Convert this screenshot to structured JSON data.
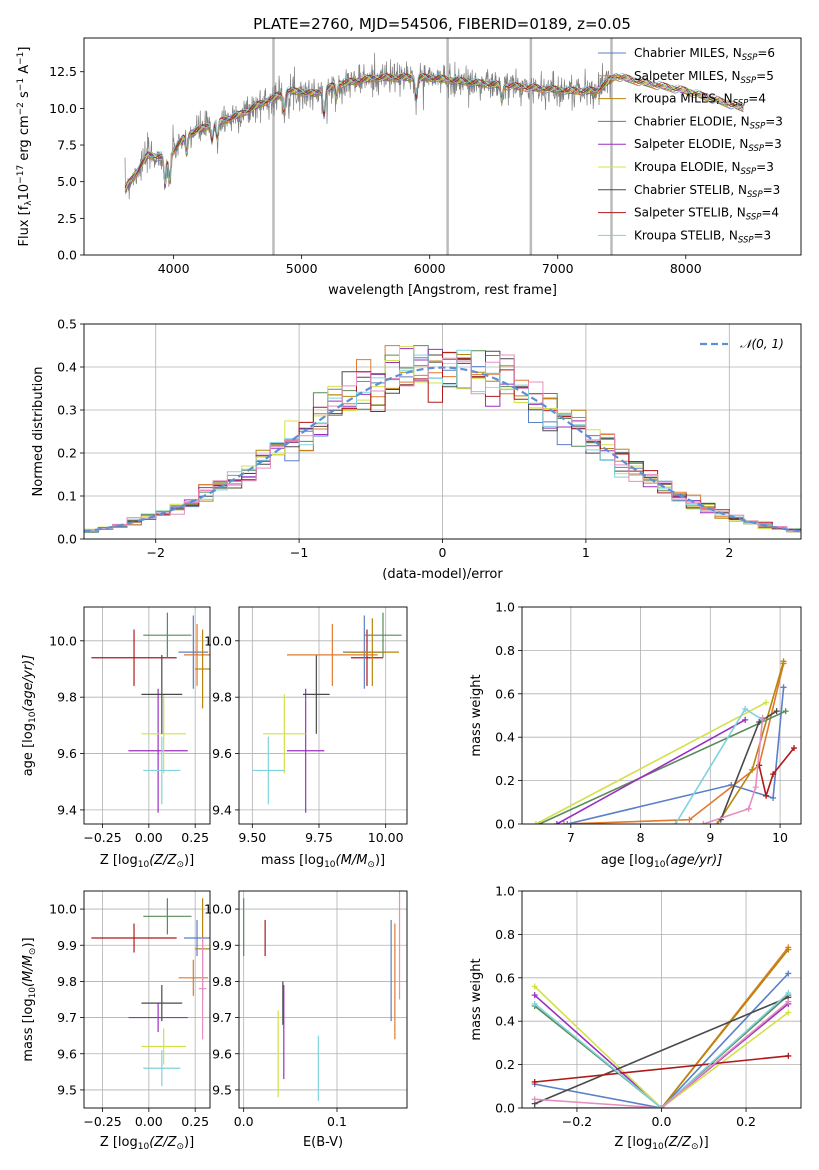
{
  "figure": {
    "title": "PLATE=2760, MJD=54506, FIBERID=0189, z=0.05"
  },
  "legend_spectrum": [
    {
      "label": "Chabrier MILES, N",
      "sub": "SSP",
      "suffix": "=6",
      "color": "#5b7fc9"
    },
    {
      "label": "Salpeter MILES, N",
      "sub": "SSP",
      "suffix": "=5",
      "color": "#e07a2e"
    },
    {
      "label": "Kroupa MILES, N",
      "sub": "SSP",
      "suffix": "=4",
      "color": "#b8860b"
    },
    {
      "label": "Chabrier ELODIE, N",
      "sub": "SSP",
      "suffix": "=3",
      "color": "#5a8a5a"
    },
    {
      "label": "Salpeter ELODIE, N",
      "sub": "SSP",
      "suffix": "=3",
      "color": "#9b30c0"
    },
    {
      "label": "Kroupa ELODIE, N",
      "sub": "SSP",
      "suffix": "=3",
      "color": "#d4e04a"
    },
    {
      "label": "Chabrier STELIB, N",
      "sub": "SSP",
      "suffix": "=3",
      "color": "#4a4a4a"
    },
    {
      "label": "Salpeter STELIB, N",
      "sub": "SSP",
      "suffix": "=4",
      "color": "#b01818"
    },
    {
      "label": "Kroupa STELIB, N",
      "sub": "SSP",
      "suffix": "=3",
      "color": "#7fd3dc"
    }
  ],
  "legend_residual": {
    "label": "𝒩(0, 1)",
    "color": "#5b8fd6"
  },
  "colors": {
    "data": "#7f7f7f",
    "mask": "#bbbbbb",
    "grid": "#b0b0b0",
    "pink": "#e58fc0"
  },
  "chart_data": [
    {
      "id": "spectrum",
      "type": "line",
      "xlabel": "wavelength [Angstrom, rest frame]",
      "ylabel": "Flux [f",
      "ylabel_sub": "λ",
      "ylabel_mid": "10",
      "ylabel_sup1": "−17",
      "ylabel_end": " erg cm",
      "ylabel_sup2": "−2",
      "ylabel_end2": " s",
      "ylabel_sup3": "−1",
      "ylabel_end3": " A",
      "ylabel_sup4": "−1",
      "ylabel_close": "]",
      "xlim": [
        3300,
        8900
      ],
      "ylim": [
        0,
        14.8
      ],
      "xticks": [
        4000,
        5000,
        6000,
        7000,
        8000
      ],
      "yticks": [
        "0.0",
        "2.5",
        "5.0",
        "7.5",
        "10.0",
        "12.5"
      ],
      "ytick_values": [
        0,
        2.5,
        5,
        7.5,
        10,
        12.5
      ],
      "continuum_knots": [
        [
          3620,
          4.5
        ],
        [
          3800,
          6.8
        ],
        [
          3950,
          6.6
        ],
        [
          4100,
          8.2
        ],
        [
          4300,
          8.9
        ],
        [
          4500,
          9.5
        ],
        [
          4700,
          10.4
        ],
        [
          4900,
          11.2
        ],
        [
          5100,
          11.0
        ],
        [
          5300,
          11.7
        ],
        [
          5600,
          12.1
        ],
        [
          6000,
          12.1
        ],
        [
          6400,
          11.7
        ],
        [
          6800,
          11.4
        ],
        [
          7100,
          11.2
        ],
        [
          7300,
          11.2
        ],
        [
          7450,
          12.2
        ],
        [
          7700,
          11.7
        ],
        [
          8000,
          11.2
        ],
        [
          8300,
          10.4
        ],
        [
          8450,
          10.0
        ]
      ],
      "data_range": [
        3620,
        7420
      ],
      "model_range": [
        3620,
        8450
      ],
      "absorption_lines": [
        [
          3934,
          2.2
        ],
        [
          3969,
          2.0
        ],
        [
          4102,
          1.5
        ],
        [
          4300,
          1.2
        ],
        [
          4340,
          1.3
        ],
        [
          4861,
          1.4
        ],
        [
          5175,
          2.0
        ],
        [
          5270,
          1.0
        ],
        [
          5895,
          1.6
        ],
        [
          6563,
          1.2
        ]
      ],
      "masks": [
        4780,
        6140,
        6790,
        7420
      ]
    },
    {
      "id": "residuals",
      "type": "histogram",
      "xlabel": "(data-model)/error",
      "ylabel": "Normed distribution",
      "xlim": [
        -2.5,
        2.5
      ],
      "ylim": [
        0,
        0.5
      ],
      "xticks": [
        "−2",
        "−1",
        "0",
        "1",
        "2"
      ],
      "xtick_values": [
        -2,
        -1,
        0,
        1,
        2
      ],
      "yticks": [
        "0.0",
        "0.1",
        "0.2",
        "0.3",
        "0.4",
        "0.5"
      ],
      "ytick_values": [
        0,
        0.1,
        0.2,
        0.3,
        0.4,
        0.5
      ],
      "bin_width": 0.1
    },
    {
      "id": "age-vs-Z",
      "type": "errorbar",
      "xlabel": "Z [log",
      "xlabel_sub": "10",
      "xlabel_rest": "(Z/Z",
      "xlabel_sub2": "⊙",
      "xlabel_end": ")]",
      "ylabel": "age  [log",
      "ylabel_sub": "10",
      "ylabel_rest": "(age/yr)]",
      "xlim": [
        -0.35,
        0.33
      ],
      "ylim": [
        9.35,
        10.12
      ],
      "xticks": [
        "−0.25",
        "0.00",
        "0.25"
      ],
      "xtick_values": [
        -0.25,
        0,
        0.25
      ],
      "yticks": [
        "9.4",
        "9.6",
        "9.8",
        "10.0"
      ],
      "ytick_values": [
        9.4,
        9.6,
        9.8,
        10.0
      ],
      "points": [
        {
          "x": -0.08,
          "xerr": 0.23,
          "y": 9.94,
          "yerr": 0.1,
          "series": 7
        },
        {
          "x": 0.1,
          "xerr": 0.13,
          "y": 10.02,
          "yerr": 0.08,
          "series": 3
        },
        {
          "x": 0.05,
          "xerr": 0.16,
          "y": 9.61,
          "yerr": 0.22,
          "series": 4
        },
        {
          "x": 0.08,
          "xerr": 0.12,
          "y": 9.67,
          "yerr": 0.14,
          "series": 5
        },
        {
          "x": 0.07,
          "xerr": 0.11,
          "y": 9.81,
          "yerr": 0.14,
          "series": 6
        },
        {
          "x": 0.07,
          "xerr": 0.1,
          "y": 9.54,
          "yerr": 0.12,
          "series": 8
        },
        {
          "x": 0.24,
          "xerr": 0.08,
          "y": 9.96,
          "yerr": 0.13,
          "series": 0
        },
        {
          "x": 0.26,
          "xerr": 0.07,
          "y": 9.95,
          "yerr": 0.11,
          "series": 1
        },
        {
          "x": 0.29,
          "xerr": 0.04,
          "y": 9.9,
          "yerr": 0.14,
          "series": 2
        }
      ]
    },
    {
      "id": "age-vs-mass",
      "type": "errorbar",
      "xlabel": "mass [log",
      "xlabel_sub": "10",
      "xlabel_rest": "(M/M",
      "xlabel_sub2": "⊙",
      "xlabel_end": ")]",
      "ylabel": "",
      "xlim": [
        9.45,
        10.08
      ],
      "ylim": [
        9.35,
        10.12
      ],
      "xticks": [
        "9.50",
        "9.75",
        "10.00"
      ],
      "xtick_values": [
        9.5,
        9.75,
        10.0
      ],
      "yticks": [
        "9.4",
        "9.6",
        "9.8",
        "10.0"
      ],
      "ytick_values": [
        9.4,
        9.6,
        9.8,
        10.0
      ],
      "points": [
        {
          "x": 9.93,
          "xerr": 0.06,
          "y": 9.94,
          "yerr": 0.1,
          "series": 7
        },
        {
          "x": 9.99,
          "xerr": 0.07,
          "y": 10.02,
          "yerr": 0.08,
          "series": 3
        },
        {
          "x": 9.7,
          "xerr": 0.07,
          "y": 9.61,
          "yerr": 0.22,
          "series": 4
        },
        {
          "x": 9.62,
          "xerr": 0.08,
          "y": 9.67,
          "yerr": 0.14,
          "series": 5
        },
        {
          "x": 9.74,
          "xerr": 0.05,
          "y": 9.81,
          "yerr": 0.14,
          "series": 6
        },
        {
          "x": 9.56,
          "xerr": 0.06,
          "y": 9.54,
          "yerr": 0.12,
          "series": 8
        },
        {
          "x": 9.92,
          "xerr": 0.08,
          "y": 9.96,
          "yerr": 0.13,
          "series": 0
        },
        {
          "x": 9.8,
          "xerr": 0.17,
          "y": 9.95,
          "yerr": 0.11,
          "series": 1
        },
        {
          "x": 9.95,
          "xerr": 0.1,
          "y": 9.96,
          "yerr": 0.12,
          "series": 2
        }
      ]
    },
    {
      "id": "weight-vs-age",
      "type": "line",
      "xlabel": "age  [log",
      "xlabel_sub": "10",
      "xlabel_rest": "(age/yr)]",
      "ylabel": "mass weight",
      "xlim": [
        6.3,
        10.3
      ],
      "ylim": [
        0,
        1.0
      ],
      "xticks": [
        "7",
        "8",
        "9",
        "10"
      ],
      "xtick_values": [
        7,
        8,
        9,
        10
      ],
      "yticks": [
        "0.0",
        "0.2",
        "0.4",
        "0.6",
        "0.8",
        "1.0"
      ],
      "ytick_values": [
        0,
        0.2,
        0.4,
        0.6,
        0.8,
        1.0
      ],
      "series": [
        {
          "series": 0,
          "points": [
            [
              6.95,
              0.0
            ],
            [
              9.3,
              0.18
            ],
            [
              9.9,
              0.12
            ],
            [
              10.05,
              0.63
            ]
          ]
        },
        {
          "series": 1,
          "points": [
            [
              6.9,
              0.0
            ],
            [
              8.7,
              0.02
            ],
            [
              9.7,
              0.27
            ],
            [
              10.05,
              0.74
            ]
          ]
        },
        {
          "series": 2,
          "points": [
            [
              9.1,
              0.0
            ],
            [
              9.6,
              0.25
            ],
            [
              10.05,
              0.75
            ]
          ]
        },
        {
          "series": 3,
          "points": [
            [
              6.55,
              0.0
            ],
            [
              10.08,
              0.52
            ]
          ]
        },
        {
          "series": 4,
          "points": [
            [
              6.8,
              0.0
            ],
            [
              9.5,
              0.48
            ]
          ]
        },
        {
          "series": 5,
          "points": [
            [
              6.5,
              0.0
            ],
            [
              9.8,
              0.56
            ]
          ]
        },
        {
          "series": 6,
          "points": [
            [
              9.15,
              0.02
            ],
            [
              9.7,
              0.47
            ],
            [
              9.95,
              0.52
            ]
          ]
        },
        {
          "series": 7,
          "points": [
            [
              9.7,
              0.27
            ],
            [
              9.8,
              0.13
            ],
            [
              9.9,
              0.23
            ],
            [
              10.2,
              0.35
            ]
          ]
        },
        {
          "series": 8,
          "points": [
            [
              8.5,
              0.0
            ],
            [
              9.5,
              0.53
            ],
            [
              9.75,
              0.48
            ]
          ]
        },
        {
          "series": 9,
          "points": [
            [
              8.9,
              0.0
            ],
            [
              9.55,
              0.07
            ],
            [
              9.65,
              0.17
            ],
            [
              9.75,
              0.49
            ]
          ]
        }
      ]
    },
    {
      "id": "mass-vs-Z",
      "type": "errorbar",
      "xlabel": "Z [log",
      "xlabel_sub": "10",
      "xlabel_rest": "(Z/Z",
      "xlabel_sub2": "⊙",
      "xlabel_end": ")]",
      "ylabel": "mass [log",
      "ylabel_sub": "10",
      "ylabel_rest": "(M/M",
      "ylabel_sub2": "⊙",
      "ylabel_end": ")]",
      "xlim": [
        -0.35,
        0.33
      ],
      "ylim": [
        9.45,
        10.05
      ],
      "xticks": [
        "−0.25",
        "0.00",
        "0.25"
      ],
      "xtick_values": [
        -0.25,
        0,
        0.25
      ],
      "yticks": [
        "9.5",
        "9.6",
        "9.7",
        "9.8",
        "9.9",
        "10.0"
      ],
      "ytick_values": [
        9.5,
        9.6,
        9.7,
        9.8,
        9.9,
        10.0
      ],
      "points": [
        {
          "x": -0.08,
          "xerr": 0.23,
          "y": 9.92,
          "yerr": 0.04,
          "series": 7
        },
        {
          "x": 0.1,
          "xerr": 0.13,
          "y": 9.98,
          "yerr": 0.05,
          "series": 3
        },
        {
          "x": 0.05,
          "xerr": 0.16,
          "y": 9.7,
          "yerr": 0.04,
          "series": 4
        },
        {
          "x": 0.08,
          "xerr": 0.12,
          "y": 9.62,
          "yerr": 0.05,
          "series": 5
        },
        {
          "x": 0.07,
          "xerr": 0.11,
          "y": 9.74,
          "yerr": 0.05,
          "series": 6
        },
        {
          "x": 0.07,
          "xerr": 0.1,
          "y": 9.56,
          "yerr": 0.05,
          "series": 8
        },
        {
          "x": 0.24,
          "xerr": 0.08,
          "y": 9.81,
          "yerr": 0.05,
          "series": 1
        },
        {
          "x": 0.26,
          "xerr": 0.07,
          "y": 9.92,
          "yerr": 0.05,
          "series": 0
        },
        {
          "x": 0.29,
          "xerr": 0.04,
          "y": 9.89,
          "yerr": 0.14,
          "series": 2
        },
        {
          "x": 0.29,
          "xerr": 0.02,
          "y": 9.78,
          "yerr": 0.14,
          "series": 9
        }
      ]
    },
    {
      "id": "mass-vs-EBV",
      "type": "errorbar",
      "xlabel": "E(B-V)",
      "ylabel": "",
      "xlim": [
        -0.005,
        0.175
      ],
      "ylim": [
        9.45,
        10.05
      ],
      "xticks": [
        "0.0",
        "0.1"
      ],
      "xtick_values": [
        0,
        0.1
      ],
      "yticks": [
        "9.5",
        "9.6",
        "9.7",
        "9.8",
        "9.9",
        "10.0"
      ],
      "ytick_values": [
        9.5,
        9.6,
        9.7,
        9.8,
        9.9,
        10.0
      ],
      "points": [
        {
          "x": 0.0,
          "xerr": 0.0,
          "y": 9.95,
          "yerr": 0.08,
          "series": 3
        },
        {
          "x": 0.023,
          "xerr": 0.0,
          "y": 9.92,
          "yerr": 0.05,
          "series": 7
        },
        {
          "x": 0.037,
          "xerr": 0.0,
          "y": 9.6,
          "yerr": 0.12,
          "series": 5
        },
        {
          "x": 0.043,
          "xerr": 0.0,
          "y": 9.66,
          "yerr": 0.13,
          "series": 4
        },
        {
          "x": 0.042,
          "xerr": 0.0,
          "y": 9.74,
          "yerr": 0.06,
          "series": 6
        },
        {
          "x": 0.08,
          "xerr": 0.0,
          "y": 9.56,
          "yerr": 0.09,
          "series": 8
        },
        {
          "x": 0.158,
          "xerr": 0.0,
          "y": 9.83,
          "yerr": 0.14,
          "series": 0
        },
        {
          "x": 0.162,
          "xerr": 0.0,
          "y": 9.8,
          "yerr": 0.16,
          "series": 1
        },
        {
          "x": 0.167,
          "xerr": 0.0,
          "y": 9.9,
          "yerr": 0.15,
          "series": 9
        }
      ]
    },
    {
      "id": "weight-vs-Z",
      "type": "line",
      "xlabel": "Z [log",
      "xlabel_sub": "10",
      "xlabel_rest": "(Z/Z",
      "xlabel_sub2": "⊙",
      "xlabel_end": ")]",
      "ylabel": "mass weight",
      "xlim": [
        -0.33,
        0.33
      ],
      "ylim": [
        0,
        1.0
      ],
      "xticks": [
        "−0.2",
        "0.0",
        "0.2"
      ],
      "xtick_values": [
        -0.2,
        0,
        0.2
      ],
      "yticks": [
        "0.0",
        "0.2",
        "0.4",
        "0.6",
        "0.8",
        "1.0"
      ],
      "ytick_values": [
        0,
        0.2,
        0.4,
        0.6,
        0.8,
        1.0
      ],
      "series": [
        {
          "series": 0,
          "points": [
            [
              -0.3,
              0.11
            ],
            [
              0.0,
              0.0
            ],
            [
              0.3,
              0.62
            ]
          ]
        },
        {
          "series": 1,
          "points": [
            [
              -0.3,
              0.0
            ],
            [
              0.0,
              0.0
            ],
            [
              0.3,
              0.74
            ]
          ]
        },
        {
          "series": 2,
          "points": [
            [
              0.0,
              0.0
            ],
            [
              0.3,
              0.73
            ]
          ]
        },
        {
          "series": 3,
          "points": [
            [
              -0.3,
              0.47
            ],
            [
              0.0,
              0.0
            ],
            [
              0.3,
              0.52
            ]
          ]
        },
        {
          "series": 4,
          "points": [
            [
              -0.3,
              0.52
            ],
            [
              0.0,
              0.0
            ],
            [
              0.3,
              0.48
            ]
          ]
        },
        {
          "series": 5,
          "points": [
            [
              -0.3,
              0.56
            ],
            [
              0.0,
              0.0
            ],
            [
              0.3,
              0.44
            ]
          ]
        },
        {
          "series": 6,
          "points": [
            [
              -0.3,
              0.02
            ],
            [
              0.3,
              0.51
            ]
          ]
        },
        {
          "series": 7,
          "points": [
            [
              -0.3,
              0.12
            ],
            [
              0.3,
              0.24
            ]
          ]
        },
        {
          "series": 8,
          "points": [
            [
              -0.3,
              0.48
            ],
            [
              0.0,
              0.0
            ],
            [
              0.3,
              0.53
            ]
          ]
        },
        {
          "series": 9,
          "points": [
            [
              -0.3,
              0.04
            ],
            [
              0.0,
              0.0
            ],
            [
              0.3,
              0.49
            ]
          ]
        }
      ]
    }
  ]
}
